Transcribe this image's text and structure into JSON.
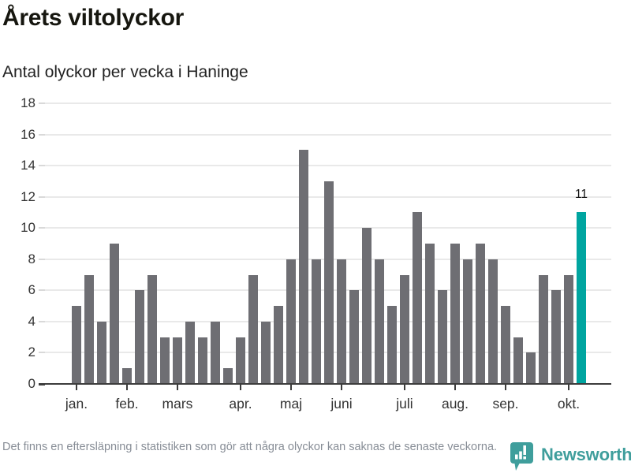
{
  "header": {
    "title": "Årets viltolyckor",
    "subtitle": "Antal olyckor per vecka i Haninge"
  },
  "chart_data": {
    "type": "bar",
    "title": "Årets viltolyckor",
    "subtitle": "Antal olyckor per vecka i Haninge",
    "x_unit": "vecka",
    "values": [
      5,
      7,
      4,
      9,
      1,
      6,
      7,
      3,
      3,
      4,
      3,
      4,
      1,
      3,
      7,
      4,
      5,
      8,
      15,
      8,
      13,
      8,
      6,
      10,
      8,
      5,
      7,
      11,
      9,
      6,
      9,
      8,
      9,
      8,
      5,
      3,
      2,
      7,
      6,
      7,
      11
    ],
    "highlight_last_bar": true,
    "last_bar_label": "11",
    "month_ticks": [
      {
        "label": "jan.",
        "bar_index": 0
      },
      {
        "label": "feb.",
        "bar_index": 4
      },
      {
        "label": "mars",
        "bar_index": 8
      },
      {
        "label": "apr.",
        "bar_index": 13
      },
      {
        "label": "maj",
        "bar_index": 17
      },
      {
        "label": "juni",
        "bar_index": 21
      },
      {
        "label": "juli",
        "bar_index": 26
      },
      {
        "label": "aug.",
        "bar_index": 30
      },
      {
        "label": "sep.",
        "bar_index": 34
      },
      {
        "label": "okt.",
        "bar_index": 39
      }
    ],
    "y_ticks": [
      0,
      2,
      4,
      6,
      8,
      10,
      12,
      14,
      16,
      18
    ],
    "ylim": [
      0,
      18
    ],
    "grid": true,
    "legend": false,
    "colors": {
      "bar": "#6e6e73",
      "highlight": "#00a5a0",
      "gridline": "#e9e9e9",
      "axis": "#3c3c3c"
    }
  },
  "footer": {
    "note": "Det finns en eftersläpning i statistiken som gör att några olyckor kan saknas de senaste veckorna.",
    "brand": "Newsworthy",
    "brand_color": "#3f9e9c"
  }
}
